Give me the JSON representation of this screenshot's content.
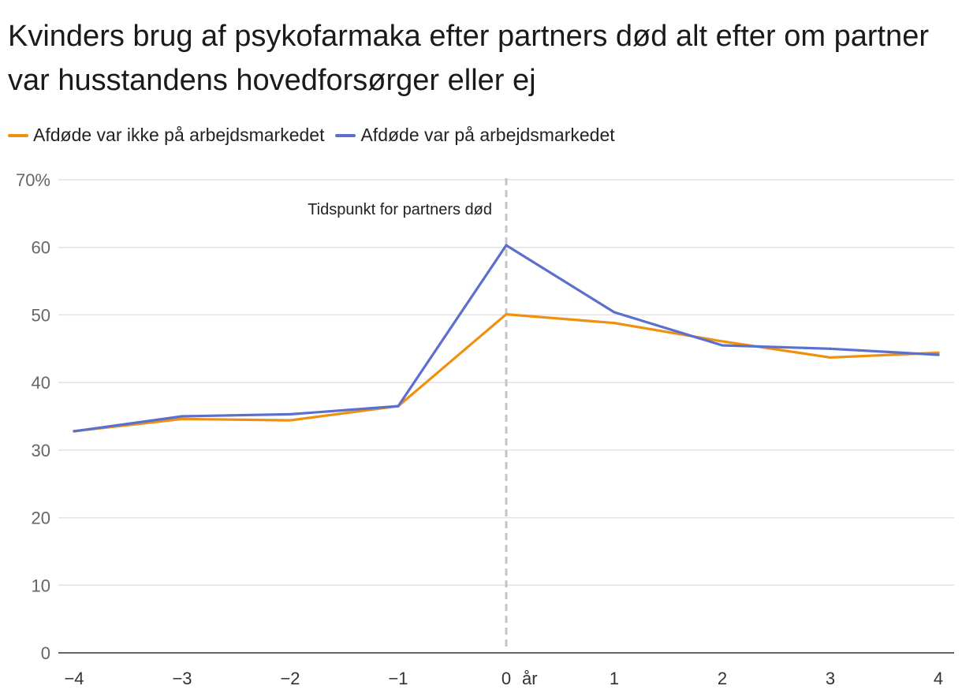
{
  "chart_data": {
    "type": "line",
    "title": "Kvinders brug af psykofarmaka efter partners død alt efter om partner var husstandens hovedforsørger eller ej",
    "x": [
      -4,
      -3,
      -2,
      -1,
      0,
      1,
      2,
      3,
      4
    ],
    "x_tick_labels": [
      "−4",
      "−3",
      "−2",
      "−1",
      "0",
      "1",
      "2",
      "3",
      "4"
    ],
    "xlabel": "år",
    "ylim": [
      0,
      70
    ],
    "y_ticks": [
      0,
      10,
      20,
      30,
      40,
      50,
      60,
      70
    ],
    "y_tick_labels": [
      "0",
      "10",
      "20",
      "30",
      "40",
      "50",
      "60",
      "70%"
    ],
    "grid": true,
    "legend_position": "top-left",
    "series": [
      {
        "name": "Afdøde var ikke på arbejdsmarkedet",
        "color": "#f0900f",
        "values": [
          32.8,
          34.6,
          34.4,
          36.5,
          50.1,
          48.8,
          46.1,
          43.7,
          44.4
        ]
      },
      {
        "name": "Afdøde var på arbejdsmarkedet",
        "color": "#5b6fcf",
        "values": [
          32.8,
          35.0,
          35.3,
          36.5,
          60.3,
          50.4,
          45.5,
          45.0,
          44.1
        ]
      }
    ],
    "annotations": [
      {
        "text": "Tidspunkt for partners død",
        "x": 0
      }
    ]
  }
}
